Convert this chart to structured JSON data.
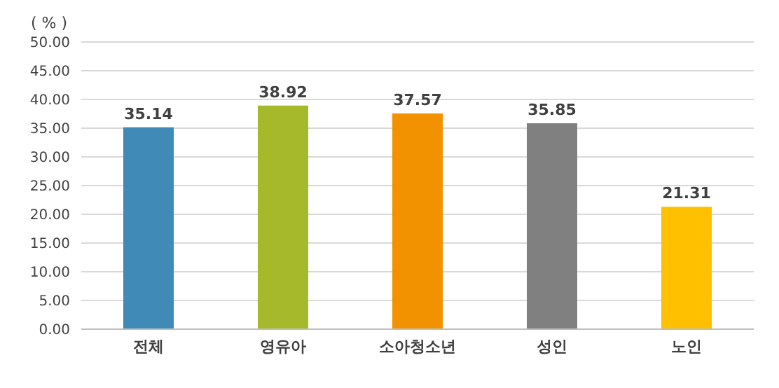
{
  "chart_data": {
    "type": "bar",
    "ylabel": "( % )",
    "categories": [
      "전체",
      "영유아",
      "소아청소년",
      "성인",
      "노인"
    ],
    "values": [
      35.14,
      38.92,
      37.57,
      35.85,
      21.31
    ],
    "colors": [
      "#3f8ab7",
      "#a6b92b",
      "#f39200",
      "#808080",
      "#ffc000"
    ],
    "ylim": [
      0,
      50
    ],
    "yticks": [
      {
        "value": 0,
        "label": "0.00"
      },
      {
        "value": 5,
        "label": "5.00"
      },
      {
        "value": 10,
        "label": "10.00"
      },
      {
        "value": 15,
        "label": "15.00"
      },
      {
        "value": 20,
        "label": "20.00"
      },
      {
        "value": 25,
        "label": "25.00"
      },
      {
        "value": 30,
        "label": "30.00"
      },
      {
        "value": 35,
        "label": "35.00"
      },
      {
        "value": 40,
        "label": "40.00"
      },
      {
        "value": 45,
        "label": "45.00"
      },
      {
        "value": 50,
        "label": "50.00"
      }
    ],
    "grid": "y",
    "data_labels": true
  }
}
